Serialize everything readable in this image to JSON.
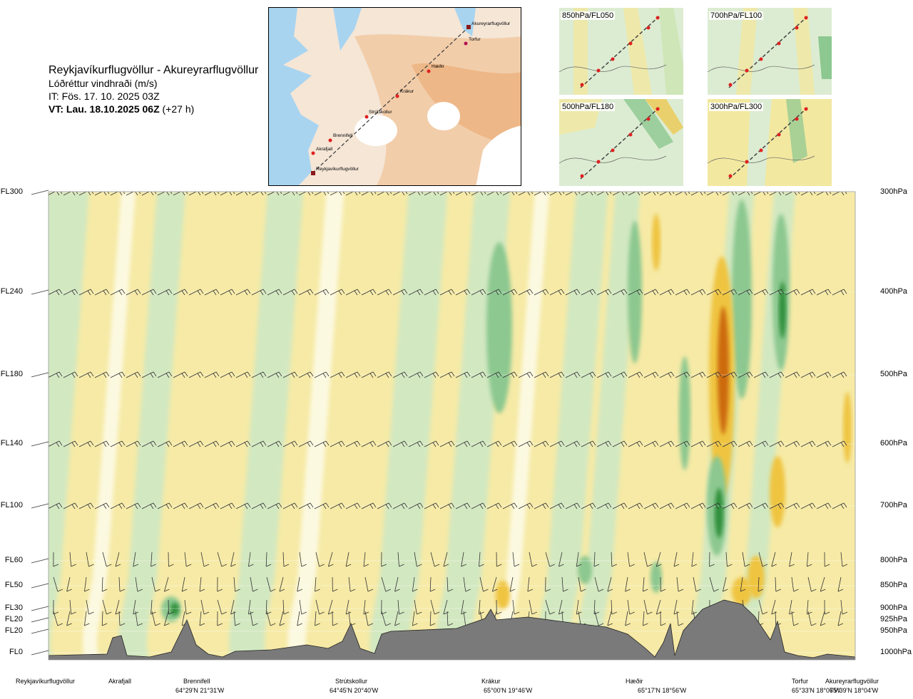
{
  "header": {
    "route": "Reykjavíkurflugvöllur - Akureyrarflugvöllur",
    "parameter": "Lóðréttur vindhraði (m/s)",
    "initial_time": "IT: Fös. 17. 10. 2025 03Z",
    "valid_label": "VT: Lau. 18.10.2025 06Z",
    "valid_lead": "(+27 h)"
  },
  "map": {
    "labels": [
      "Akureyrarflugvöllur",
      "Torfur",
      "Hæðir",
      "Krákur",
      "Strútskollur",
      "Brennifell",
      "Akrafjall",
      "Reykjavíkurflugvöllur"
    ],
    "colors": {
      "sea": "#a8d4f0",
      "land_low": "#f7efe2",
      "land_high": "#efb27c",
      "glacier": "#ffffff",
      "route": "#444444",
      "point": "#e02020"
    }
  },
  "minimaps": [
    {
      "label": "850hPa/FL050"
    },
    {
      "label": "700hPa/FL100"
    },
    {
      "label": "500hPa/FL180"
    },
    {
      "label": "300hPa/FL300"
    }
  ],
  "chart_data": {
    "type": "heatmap",
    "title": "Lóðréttur vindhraði (m/s)",
    "levels": [
      {
        "fl": "FL300",
        "hpa": "300hPa"
      },
      {
        "fl": "FL240",
        "hpa": "400hPa"
      },
      {
        "fl": "FL180",
        "hpa": "500hPa"
      },
      {
        "fl": "FL140",
        "hpa": "600hPa"
      },
      {
        "fl": "FL100",
        "hpa": "700hPa"
      },
      {
        "fl": "FL60",
        "hpa": "800hPa"
      },
      {
        "fl": "FL50",
        "hpa": "850hPa"
      },
      {
        "fl": "FL30",
        "hpa": "900hPa"
      },
      {
        "fl": "FL20",
        "hpa": "925hPa"
      },
      {
        "fl": "FL20",
        "hpa": "950hPa"
      },
      {
        "fl": "FL0",
        "hpa": "1000hPa"
      }
    ],
    "locations": [
      {
        "name": "Reykjavíkurflugvöllur",
        "coord": ""
      },
      {
        "name": "Akrafjall",
        "coord": ""
      },
      {
        "name": "Brennifell",
        "coord": "64°29'N 21°31'W"
      },
      {
        "name": "Strútskollur",
        "coord": "64°45'N 20°40'W"
      },
      {
        "name": "Krákur",
        "coord": "65°00'N 19°46'W"
      },
      {
        "name": "Hæðir",
        "coord": "65°17'N 18°56'W"
      },
      {
        "name": "Torfur",
        "coord": "65°33'N 18°07'W"
      },
      {
        "name": "Akureyrarflugvöllur",
        "coord": "65°39'N 18°04'W"
      }
    ],
    "colors": {
      "strong_down": "#cc6a10",
      "mod_down": "#efc440",
      "weak_down": "#f6eaa6",
      "near_zero": "#fdfbe8",
      "weak_up": "#cfe8c4",
      "mod_up": "#8cc890",
      "strong_up": "#2f8f3a",
      "terrain": "#7a7a7a"
    }
  }
}
